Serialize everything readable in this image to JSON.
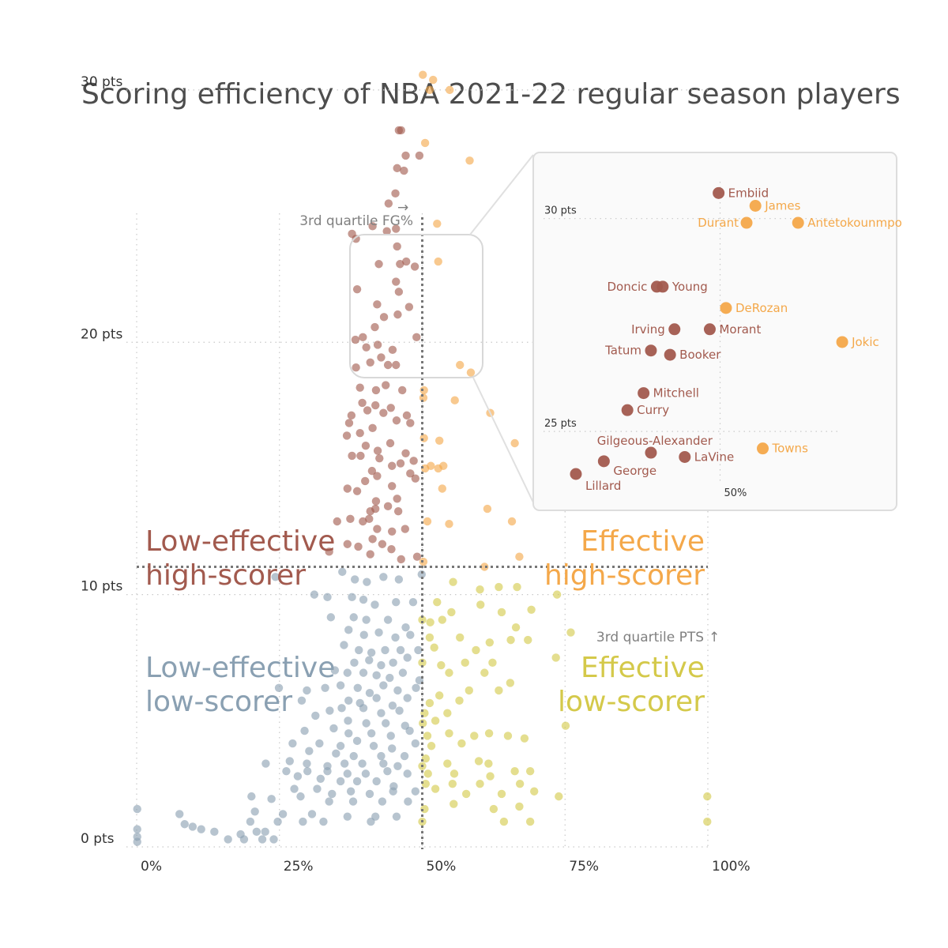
{
  "colors": {
    "low_effective_high_scorer": "#a25a4e",
    "effective_high_scorer": "#f4a84a",
    "low_effective_low_scorer": "#8aa0b2",
    "effective_low_scorer": "#d4c94a",
    "title": "#4d4d4d",
    "annotation": "#808080",
    "inset_border": "#dddddd",
    "inset_background": "#fafafa"
  },
  "chart_data": {
    "type": "scatter",
    "title": "Scoring efficiency of NBA 2021-22 regular season players",
    "xlabel": "",
    "ylabel": "",
    "xlim": [
      0,
      1
    ],
    "ylim": [
      0,
      32
    ],
    "x_ticks": [
      {
        "value": 0,
        "label": "0%"
      },
      {
        "value": 0.25,
        "label": "25%"
      },
      {
        "value": 0.5,
        "label": "50%"
      },
      {
        "value": 0.75,
        "label": "75%"
      },
      {
        "value": 1,
        "label": "100%"
      }
    ],
    "y_ticks": [
      {
        "value": 0,
        "label": "0 pts"
      },
      {
        "value": 10,
        "label": "10 pts"
      },
      {
        "value": 20,
        "label": "20 pts"
      },
      {
        "value": 30,
        "label": "30 pts"
      }
    ],
    "grid": true,
    "reference_lines": {
      "fg_pct_q3": {
        "value": 0.5,
        "label": "3rd quartile FG%",
        "arrow": "→"
      },
      "pts_q3": {
        "value": 11.1,
        "label": "3rd quartile PTS",
        "arrow": "↑"
      }
    },
    "quadrant_labels": {
      "low_effective_high_scorer": "Low-effective\nhigh-scorer",
      "effective_high_scorer": "Effective\nhigh-scorer",
      "low_effective_low_scorer": "Low-effective\nlow-scorer",
      "effective_low_scorer": "Effective\nlow-scorer"
    },
    "inset": {
      "xlim": [
        0.38,
        0.62
      ],
      "ylim": [
        24.0,
        31.2
      ],
      "x_tick": {
        "value": 0.5,
        "label": "50%"
      },
      "y_ticks": [
        {
          "value": 25,
          "label": "25 pts"
        },
        {
          "value": 30,
          "label": "30 pts"
        }
      ],
      "players": [
        {
          "name": "Embiid",
          "x": 0.499,
          "y": 30.6
        },
        {
          "name": "James",
          "x": 0.524,
          "y": 30.3
        },
        {
          "name": "Durant",
          "x": 0.518,
          "y": 29.9
        },
        {
          "name": "Antetokounmpo",
          "x": 0.553,
          "y": 29.9
        },
        {
          "name": "Doncic",
          "x": 0.457,
          "y": 28.4
        },
        {
          "name": "Young",
          "x": 0.461,
          "y": 28.4
        },
        {
          "name": "DeRozan",
          "x": 0.504,
          "y": 27.9
        },
        {
          "name": "Irving",
          "x": 0.469,
          "y": 27.4
        },
        {
          "name": "Morant",
          "x": 0.493,
          "y": 27.4
        },
        {
          "name": "Jokic",
          "x": 0.583,
          "y": 27.1
        },
        {
          "name": "Tatum",
          "x": 0.453,
          "y": 26.9
        },
        {
          "name": "Booker",
          "x": 0.466,
          "y": 26.8
        },
        {
          "name": "Mitchell",
          "x": 0.448,
          "y": 25.9
        },
        {
          "name": "Curry",
          "x": 0.437,
          "y": 25.5
        },
        {
          "name": "Gilgeous-Alexander",
          "x": 0.453,
          "y": 24.5
        },
        {
          "name": "Towns",
          "x": 0.529,
          "y": 24.6
        },
        {
          "name": "LaVine",
          "x": 0.476,
          "y": 24.4
        },
        {
          "name": "George",
          "x": 0.421,
          "y": 24.3
        },
        {
          "name": "Lillard",
          "x": 0.402,
          "y": 24.0
        }
      ]
    },
    "points": [
      [
        0.501,
        30.6
      ],
      [
        0.519,
        30.4
      ],
      [
        0.513,
        30.0
      ],
      [
        0.548,
        30.0
      ],
      [
        0.459,
        28.4
      ],
      [
        0.463,
        28.4
      ],
      [
        0.505,
        27.9
      ],
      [
        0.471,
        27.4
      ],
      [
        0.495,
        27.4
      ],
      [
        0.583,
        27.2
      ],
      [
        0.456,
        26.9
      ],
      [
        0.468,
        26.8
      ],
      [
        0.453,
        25.9
      ],
      [
        0.441,
        25.5
      ],
      [
        0.377,
        24.3
      ],
      [
        0.413,
        24.6
      ],
      [
        0.454,
        24.5
      ],
      [
        0.526,
        24.7
      ],
      [
        0.438,
        24.4
      ],
      [
        0.384,
        24.1
      ],
      [
        0.472,
        23.2
      ],
      [
        0.456,
        23.8
      ],
      [
        0.461,
        23.1
      ],
      [
        0.528,
        23.2
      ],
      [
        0.424,
        23.1
      ],
      [
        0.487,
        23.0
      ],
      [
        0.386,
        22.1
      ],
      [
        0.454,
        22.4
      ],
      [
        0.459,
        22.0
      ],
      [
        0.477,
        21.4
      ],
      [
        0.421,
        21.5
      ],
      [
        0.457,
        21.1
      ],
      [
        0.433,
        21.0
      ],
      [
        0.396,
        20.2
      ],
      [
        0.417,
        20.6
      ],
      [
        0.383,
        20.1
      ],
      [
        0.49,
        20.2
      ],
      [
        0.402,
        19.8
      ],
      [
        0.448,
        19.7
      ],
      [
        0.422,
        19.9
      ],
      [
        0.428,
        19.4
      ],
      [
        0.44,
        19.1
      ],
      [
        0.384,
        19.0
      ],
      [
        0.409,
        19.2
      ],
      [
        0.454,
        19.1
      ],
      [
        0.566,
        19.1
      ],
      [
        0.585,
        18.8
      ],
      [
        0.503,
        18.1
      ],
      [
        0.391,
        18.2
      ],
      [
        0.436,
        18.3
      ],
      [
        0.419,
        18.1
      ],
      [
        0.465,
        18.1
      ],
      [
        0.502,
        17.8
      ],
      [
        0.557,
        17.7
      ],
      [
        0.395,
        17.6
      ],
      [
        0.418,
        17.5
      ],
      [
        0.445,
        17.4
      ],
      [
        0.473,
        17.1
      ],
      [
        0.376,
        17.1
      ],
      [
        0.404,
        17.3
      ],
      [
        0.432,
        17.2
      ],
      [
        0.479,
        16.8
      ],
      [
        0.455,
        16.9
      ],
      [
        0.372,
        16.8
      ],
      [
        0.619,
        17.2
      ],
      [
        0.391,
        16.4
      ],
      [
        0.413,
        16.6
      ],
      [
        0.444,
        16.0
      ],
      [
        0.503,
        16.2
      ],
      [
        0.53,
        16.1
      ],
      [
        0.368,
        16.3
      ],
      [
        0.401,
        15.9
      ],
      [
        0.422,
        15.7
      ],
      [
        0.471,
        15.6
      ],
      [
        0.662,
        16.0
      ],
      [
        0.377,
        15.5
      ],
      [
        0.392,
        15.5
      ],
      [
        0.425,
        15.4
      ],
      [
        0.447,
        15.1
      ],
      [
        0.485,
        15.3
      ],
      [
        0.462,
        15.2
      ],
      [
        0.505,
        15.0
      ],
      [
        0.515,
        15.1
      ],
      [
        0.528,
        15.0
      ],
      [
        0.537,
        15.1
      ],
      [
        0.412,
        14.9
      ],
      [
        0.479,
        14.8
      ],
      [
        0.4,
        14.5
      ],
      [
        0.421,
        14.7
      ],
      [
        0.447,
        14.3
      ],
      [
        0.488,
        14.6
      ],
      [
        0.704,
        15.5
      ],
      [
        0.369,
        14.2
      ],
      [
        0.386,
        14.1
      ],
      [
        0.419,
        13.7
      ],
      [
        0.456,
        13.8
      ],
      [
        0.535,
        14.2
      ],
      [
        0.418,
        13.4
      ],
      [
        0.44,
        13.5
      ],
      [
        0.458,
        13.3
      ],
      [
        0.409,
        13.3
      ],
      [
        0.374,
        13.0
      ],
      [
        0.396,
        12.9
      ],
      [
        0.407,
        13.0
      ],
      [
        0.614,
        13.4
      ],
      [
        0.657,
        12.9
      ],
      [
        0.351,
        12.9
      ],
      [
        0.421,
        12.6
      ],
      [
        0.447,
        12.5
      ],
      [
        0.47,
        12.6
      ],
      [
        0.509,
        12.9
      ],
      [
        0.547,
        12.8
      ],
      [
        0.413,
        12.2
      ],
      [
        0.43,
        12.0
      ],
      [
        0.369,
        12.0
      ],
      [
        0.388,
        11.9
      ],
      [
        0.446,
        11.8
      ],
      [
        0.337,
        11.7
      ],
      [
        0.409,
        11.6
      ],
      [
        0.491,
        11.5
      ],
      [
        0.67,
        11.5
      ],
      [
        0.463,
        11.4
      ],
      [
        0.502,
        11.3
      ],
      [
        0.243,
        10.7
      ],
      [
        0.36,
        10.9
      ],
      [
        0.382,
        10.6
      ],
      [
        0.403,
        10.5
      ],
      [
        0.432,
        10.7
      ],
      [
        0.459,
        10.6
      ],
      [
        0.499,
        10.8
      ],
      [
        0.554,
        10.5
      ],
      [
        0.634,
        10.3
      ],
      [
        0.666,
        10.3
      ],
      [
        0.601,
        10.2
      ],
      [
        0.609,
        11.1
      ],
      [
        0.311,
        10.0
      ],
      [
        0.334,
        9.9
      ],
      [
        0.377,
        9.9
      ],
      [
        0.397,
        9.8
      ],
      [
        0.417,
        9.6
      ],
      [
        0.454,
        9.7
      ],
      [
        0.484,
        9.7
      ],
      [
        0.526,
        9.7
      ],
      [
        0.551,
        9.3
      ],
      [
        0.602,
        9.6
      ],
      [
        0.639,
        9.3
      ],
      [
        0.691,
        9.4
      ],
      [
        0.736,
        10.0
      ],
      [
        0.34,
        9.1
      ],
      [
        0.38,
        9.1
      ],
      [
        0.402,
        9.0
      ],
      [
        0.44,
        9.0
      ],
      [
        0.471,
        8.7
      ],
      [
        0.5,
        9.0
      ],
      [
        0.514,
        8.9
      ],
      [
        0.535,
        9.0
      ],
      [
        0.664,
        8.7
      ],
      [
        0.371,
        8.6
      ],
      [
        0.398,
        8.4
      ],
      [
        0.424,
        8.5
      ],
      [
        0.453,
        8.3
      ],
      [
        0.479,
        8.4
      ],
      [
        0.513,
        8.3
      ],
      [
        0.566,
        8.3
      ],
      [
        0.618,
        8.1
      ],
      [
        0.655,
        8.2
      ],
      [
        0.76,
        8.5
      ],
      [
        0.363,
        8.0
      ],
      [
        0.389,
        7.8
      ],
      [
        0.411,
        7.7
      ],
      [
        0.435,
        7.8
      ],
      [
        0.462,
        7.8
      ],
      [
        0.493,
        7.8
      ],
      [
        0.521,
        7.9
      ],
      [
        0.594,
        7.8
      ],
      [
        0.685,
        8.2
      ],
      [
        0.381,
        7.3
      ],
      [
        0.407,
        7.4
      ],
      [
        0.428,
        7.2
      ],
      [
        0.449,
        7.3
      ],
      [
        0.474,
        7.5
      ],
      [
        0.5,
        7.3
      ],
      [
        0.533,
        7.2
      ],
      [
        0.575,
        7.3
      ],
      [
        0.623,
        7.3
      ],
      [
        0.347,
        7.0
      ],
      [
        0.369,
        6.9
      ],
      [
        0.397,
        6.9
      ],
      [
        0.42,
        6.8
      ],
      [
        0.443,
        6.7
      ],
      [
        0.466,
        6.9
      ],
      [
        0.495,
        6.6
      ],
      [
        0.547,
        6.9
      ],
      [
        0.609,
        6.9
      ],
      [
        0.734,
        7.5
      ],
      [
        0.33,
        6.3
      ],
      [
        0.357,
        6.4
      ],
      [
        0.387,
        6.3
      ],
      [
        0.408,
        6.1
      ],
      [
        0.432,
        6.4
      ],
      [
        0.457,
        6.2
      ],
      [
        0.489,
        6.3
      ],
      [
        0.53,
        6.0
      ],
      [
        0.582,
        6.2
      ],
      [
        0.634,
        6.2
      ],
      [
        0.654,
        6.5
      ],
      [
        0.249,
        6.3
      ],
      [
        0.298,
        6.2
      ],
      [
        0.371,
        5.8
      ],
      [
        0.391,
        5.7
      ],
      [
        0.42,
        5.9
      ],
      [
        0.448,
        5.6
      ],
      [
        0.474,
        5.9
      ],
      [
        0.513,
        5.7
      ],
      [
        0.565,
        5.8
      ],
      [
        0.289,
        5.8
      ],
      [
        0.338,
        5.4
      ],
      [
        0.359,
        5.5
      ],
      [
        0.397,
        5.5
      ],
      [
        0.428,
        5.3
      ],
      [
        0.46,
        5.4
      ],
      [
        0.504,
        5.3
      ],
      [
        0.544,
        5.3
      ],
      [
        0.313,
        5.2
      ],
      [
        0.37,
        5.0
      ],
      [
        0.402,
        4.9
      ],
      [
        0.436,
        4.9
      ],
      [
        0.47,
        4.8
      ],
      [
        0.501,
        4.9
      ],
      [
        0.523,
        5.0
      ],
      [
        0.751,
        4.8
      ],
      [
        0.294,
        4.6
      ],
      [
        0.345,
        4.7
      ],
      [
        0.371,
        4.5
      ],
      [
        0.411,
        4.5
      ],
      [
        0.445,
        4.4
      ],
      [
        0.478,
        4.6
      ],
      [
        0.509,
        4.4
      ],
      [
        0.547,
        4.5
      ],
      [
        0.591,
        4.4
      ],
      [
        0.617,
        4.5
      ],
      [
        0.65,
        4.4
      ],
      [
        0.679,
        4.3
      ],
      [
        0.273,
        4.1
      ],
      [
        0.32,
        4.1
      ],
      [
        0.357,
        4.0
      ],
      [
        0.386,
        4.2
      ],
      [
        0.415,
        4.0
      ],
      [
        0.447,
        3.9
      ],
      [
        0.488,
        4.1
      ],
      [
        0.516,
        4.0
      ],
      [
        0.569,
        4.1
      ],
      [
        0.302,
        3.8
      ],
      [
        0.349,
        3.7
      ],
      [
        0.38,
        3.6
      ],
      [
        0.428,
        3.6
      ],
      [
        0.469,
        3.6
      ],
      [
        0.506,
        3.5
      ],
      [
        0.268,
        3.4
      ],
      [
        0.298,
        3.3
      ],
      [
        0.334,
        3.2
      ],
      [
        0.364,
        3.3
      ],
      [
        0.395,
        3.3
      ],
      [
        0.432,
        3.3
      ],
      [
        0.457,
        3.2
      ],
      [
        0.5,
        3.2
      ],
      [
        0.544,
        3.3
      ],
      [
        0.599,
        3.4
      ],
      [
        0.616,
        3.3
      ],
      [
        0.262,
        3.0
      ],
      [
        0.299,
        3.0
      ],
      [
        0.334,
        3.0
      ],
      [
        0.369,
        2.9
      ],
      [
        0.401,
        2.9
      ],
      [
        0.439,
        3.0
      ],
      [
        0.474,
        2.9
      ],
      [
        0.51,
        2.9
      ],
      [
        0.556,
        2.9
      ],
      [
        0.619,
        2.8
      ],
      [
        0.662,
        3.0
      ],
      [
        0.689,
        3.0
      ],
      [
        0.226,
        3.3
      ],
      [
        0.282,
        2.8
      ],
      [
        0.322,
        2.7
      ],
      [
        0.357,
        2.6
      ],
      [
        0.386,
        2.6
      ],
      [
        0.42,
        2.6
      ],
      [
        0.45,
        2.4
      ],
      [
        0.506,
        2.5
      ],
      [
        0.553,
        2.5
      ],
      [
        0.601,
        2.5
      ],
      [
        0.671,
        2.5
      ],
      [
        0.276,
        2.3
      ],
      [
        0.316,
        2.3
      ],
      [
        0.342,
        2.1
      ],
      [
        0.375,
        2.2
      ],
      [
        0.408,
        2.1
      ],
      [
        0.449,
        2.2
      ],
      [
        0.488,
        2.2
      ],
      [
        0.523,
        2.3
      ],
      [
        0.577,
        2.1
      ],
      [
        0.639,
        2.1
      ],
      [
        0.696,
        2.2
      ],
      [
        0.739,
        2.0
      ],
      [
        0.999,
        2.0
      ],
      [
        0.201,
        2.0
      ],
      [
        0.236,
        1.9
      ],
      [
        0.287,
        2.0
      ],
      [
        0.337,
        1.8
      ],
      [
        0.379,
        1.8
      ],
      [
        0.43,
        1.8
      ],
      [
        0.475,
        1.8
      ],
      [
        0.504,
        1.5
      ],
      [
        0.555,
        1.7
      ],
      [
        0.625,
        1.5
      ],
      [
        0.67,
        1.6
      ],
      [
        0.001,
        1.5
      ],
      [
        0.207,
        1.4
      ],
      [
        0.256,
        1.3
      ],
      [
        0.307,
        1.3
      ],
      [
        0.369,
        1.2
      ],
      [
        0.418,
        1.2
      ],
      [
        0.455,
        1.2
      ],
      [
        0.075,
        1.3
      ],
      [
        0.199,
        1.0
      ],
      [
        0.247,
        1.0
      ],
      [
        0.291,
        1.0
      ],
      [
        0.327,
        1.0
      ],
      [
        0.41,
        1.0
      ],
      [
        0.5,
        1.0
      ],
      [
        0.643,
        1.0
      ],
      [
        0.689,
        1.0
      ],
      [
        0.999,
        1.0
      ],
      [
        0.084,
        0.9
      ],
      [
        0.098,
        0.8
      ],
      [
        0.113,
        0.7
      ],
      [
        0.136,
        0.6
      ],
      [
        0.001,
        0.7
      ],
      [
        0.182,
        0.5
      ],
      [
        0.21,
        0.6
      ],
      [
        0.225,
        0.6
      ],
      [
        0.001,
        0.4
      ],
      [
        0.16,
        0.3
      ],
      [
        0.188,
        0.3
      ],
      [
        0.22,
        0.3
      ],
      [
        0.24,
        0.3
      ],
      [
        0.001,
        0.2
      ]
    ]
  }
}
